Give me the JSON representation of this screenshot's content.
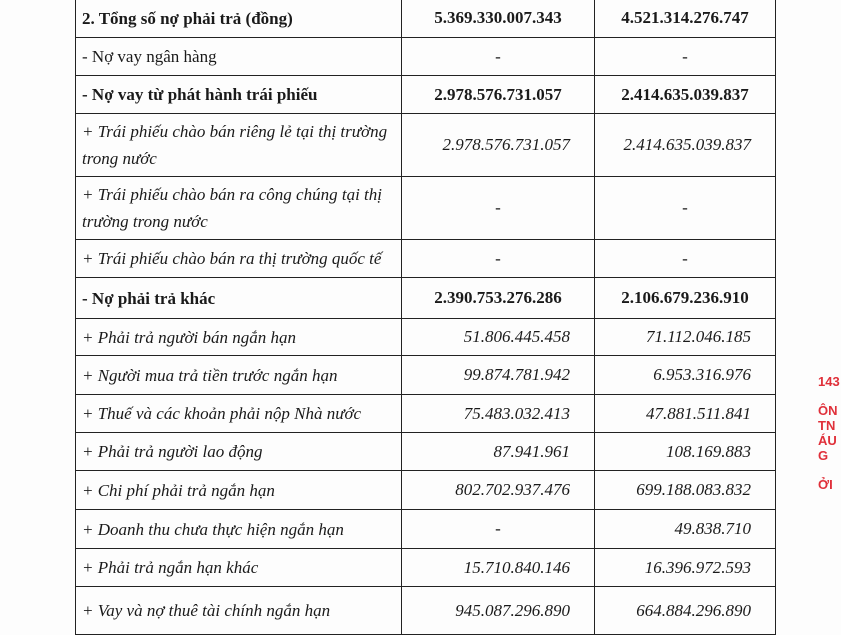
{
  "rows": [
    {
      "label": "2. Tổng số nợ phải trả (đồng)",
      "v1": "5.369.330.007.343",
      "v2": "4.521.314.276.747",
      "style": "bold"
    },
    {
      "label": "- Nợ vay ngân hàng",
      "v1": "-",
      "v2": "-",
      "style": "normal"
    },
    {
      "label": "- Nợ vay từ phát hành trái phiếu",
      "v1": "2.978.576.731.057",
      "v2": "2.414.635.039.837",
      "style": "bold"
    },
    {
      "label": "+ Trái phiếu chào bán riêng lẻ tại thị trường trong nước",
      "v1": "2.978.576.731.057",
      "v2": "2.414.635.039.837",
      "style": "italic"
    },
    {
      "label": "+ Trái phiếu chào bán ra công chúng tại thị trường trong nước",
      "v1": "-",
      "v2": "-",
      "style": "italic"
    },
    {
      "label": "+ Trái phiếu chào bán ra thị trường quốc tế",
      "v1": "-",
      "v2": "-",
      "style": "italic"
    },
    {
      "label": "- Nợ phải trả khác",
      "v1": "2.390.753.276.286",
      "v2": "2.106.679.236.910",
      "style": "bold"
    },
    {
      "label": "+ Phải trả người bán ngắn hạn",
      "v1": "51.806.445.458",
      "v2": "71.112.046.185",
      "style": "italic"
    },
    {
      "label": "+ Người mua trả tiền trước ngắn hạn",
      "v1": "99.874.781.942",
      "v2": "6.953.316.976",
      "style": "italic"
    },
    {
      "label": "+ Thuế và các khoản phải nộp Nhà nước",
      "v1": "75.483.032.413",
      "v2": "47.881.511.841",
      "style": "italic"
    },
    {
      "label": "+ Phải trả người lao động",
      "v1": "87.941.961",
      "v2": "108.169.883",
      "style": "italic"
    },
    {
      "label": "+ Chi phí phải trả ngắn hạn",
      "v1": "802.702.937.476",
      "v2": "699.188.083.832",
      "style": "italic"
    },
    {
      "label": "+ Doanh thu chưa thực hiện ngắn hạn",
      "v1": "-",
      "v2": "49.838.710",
      "style": "italic"
    },
    {
      "label": "+ Phải trả ngắn hạn khác",
      "v1": "15.710.840.146",
      "v2": "16.396.972.593",
      "style": "italic"
    },
    {
      "label": "+ Vay và nợ thuê tài chính ngắn hạn",
      "v1": "945.087.296.890",
      "v2": "664.884.296.890",
      "style": "italic"
    }
  ],
  "stamp": {
    "lines": [
      "143",
      "ÔN",
      "TN",
      "ÁU",
      "G",
      "ỞI"
    ],
    "color": "#e0303a"
  }
}
